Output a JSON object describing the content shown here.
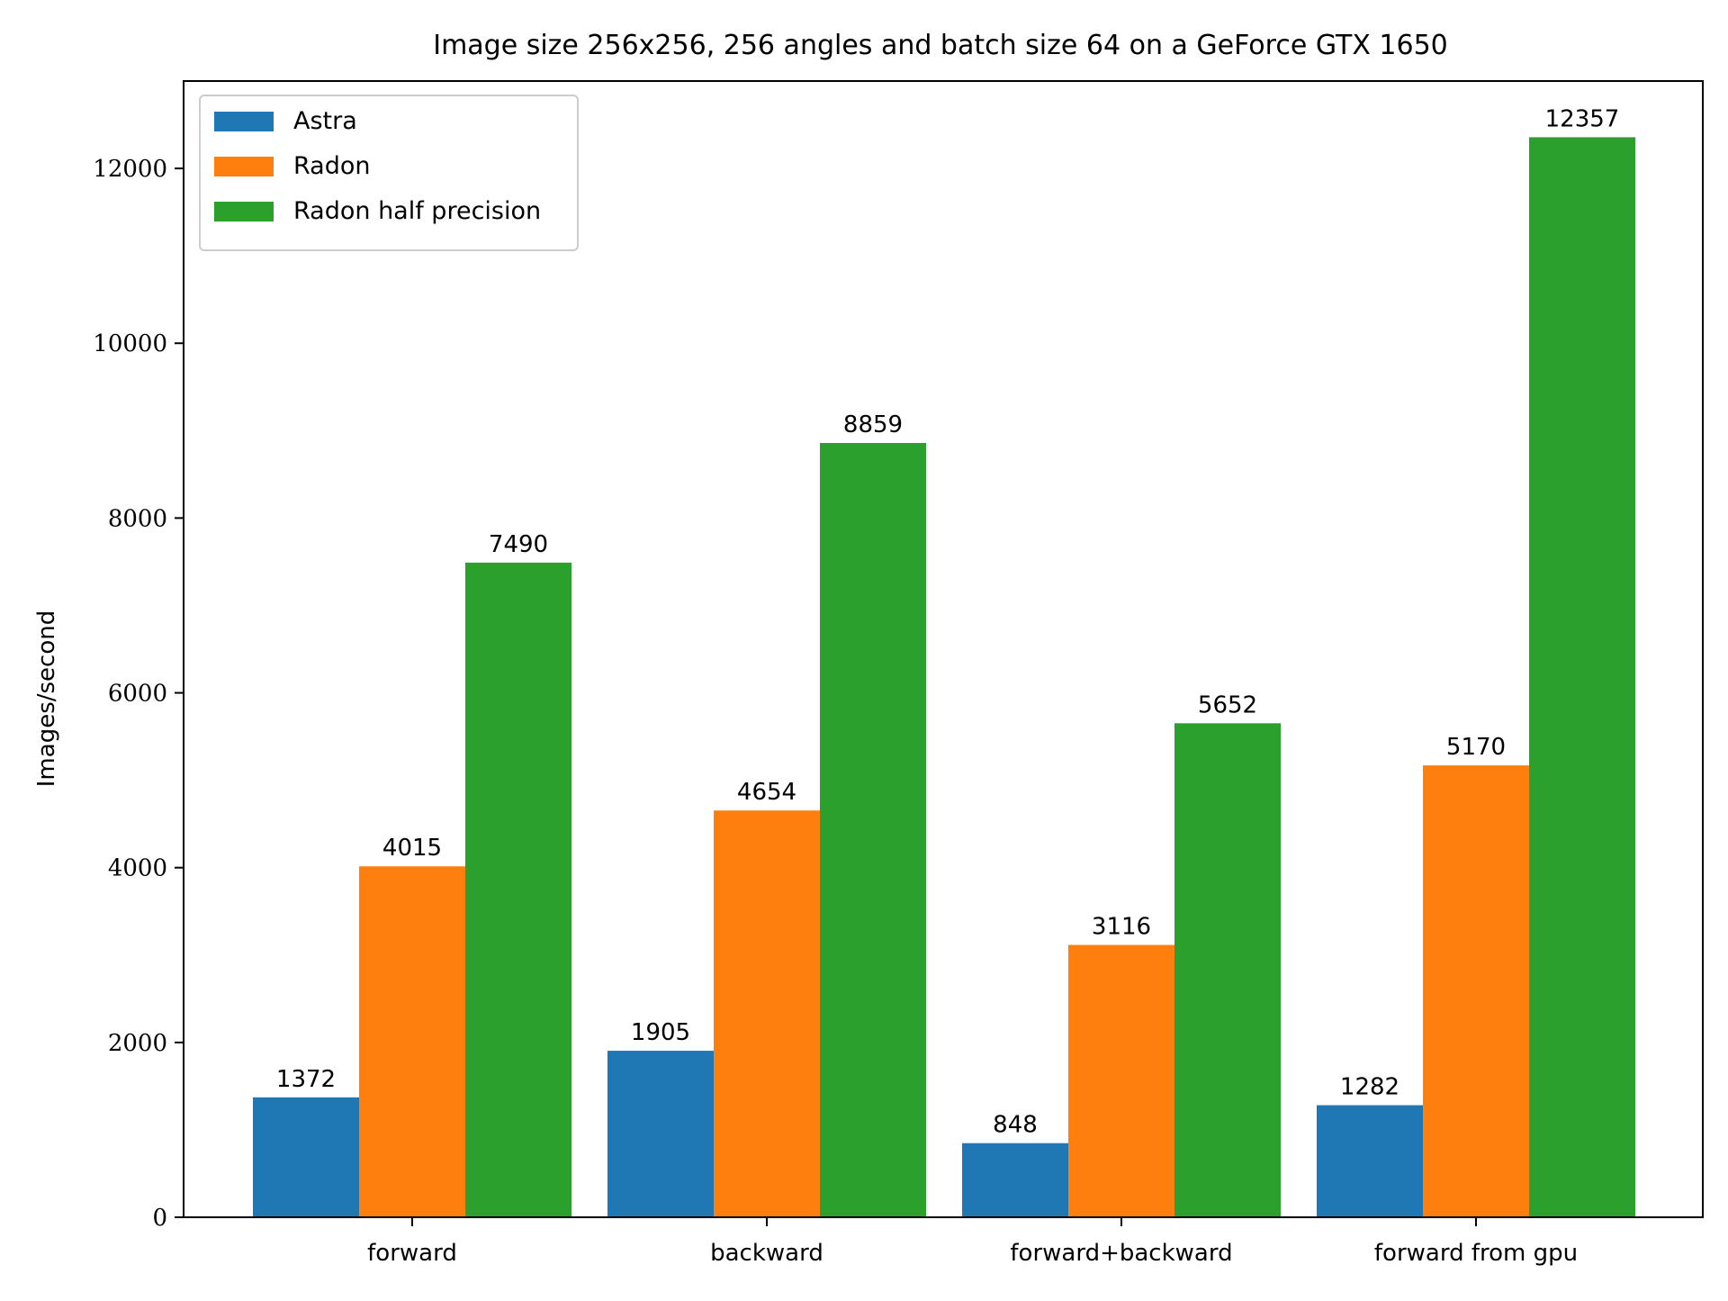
{
  "chart_data": {
    "type": "bar",
    "title": "Image size 256x256, 256 angles and batch size 64 on a GeForce GTX 1650",
    "xlabel": "",
    "ylabel": "Images/second",
    "categories": [
      "forward",
      "backward",
      "forward+backward",
      "forward from gpu"
    ],
    "series": [
      {
        "name": "Astra",
        "color": "#1f77b4",
        "values": [
          1372,
          1905,
          848,
          1282
        ]
      },
      {
        "name": "Radon",
        "color": "#ff7f0e",
        "values": [
          4015,
          4654,
          3116,
          5170
        ]
      },
      {
        "name": "Radon half precision",
        "color": "#2ca02c",
        "values": [
          7490,
          8859,
          5652,
          12357
        ]
      }
    ],
    "ylim": [
      0,
      13000
    ],
    "yticks": [
      0,
      2000,
      4000,
      6000,
      8000,
      10000,
      12000
    ],
    "ytick_labels": [
      "0",
      "2000",
      "4000",
      "6000",
      "8000",
      "10000",
      "12000"
    ],
    "grid": false,
    "legend_position": "top-left"
  }
}
